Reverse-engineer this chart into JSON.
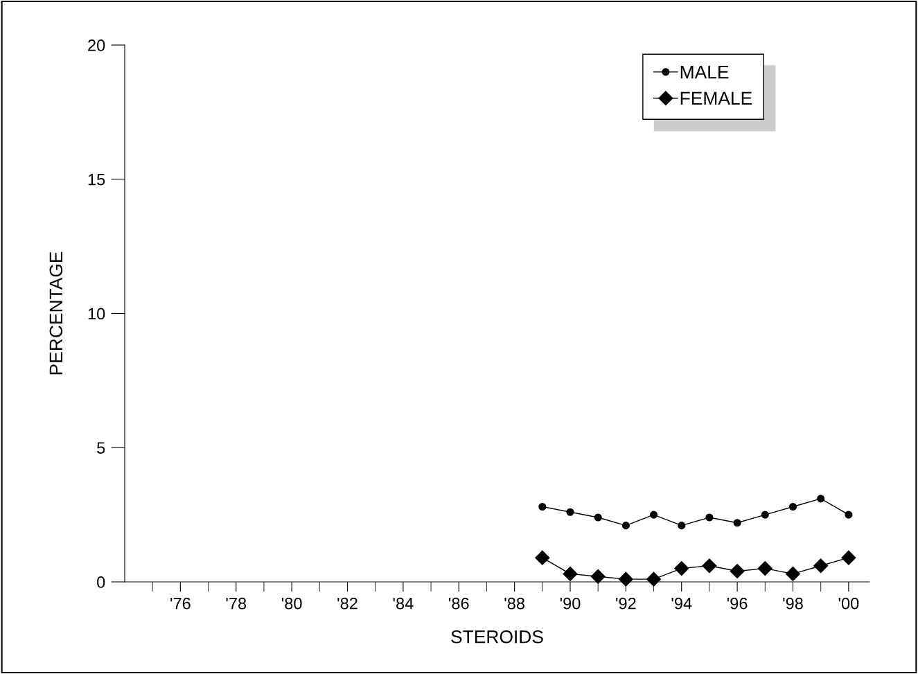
{
  "chart_data": {
    "type": "line",
    "xlabel": "STEROIDS",
    "ylabel": "PERCENTAGE",
    "x": [
      1989,
      1990,
      1991,
      1992,
      1993,
      1994,
      1995,
      1996,
      1997,
      1998,
      1999,
      2000
    ],
    "series": [
      {
        "name": "MALE",
        "color": "#000000",
        "marker": "circle",
        "values": [
          2.8,
          2.6,
          2.4,
          2.1,
          2.5,
          2.1,
          2.4,
          2.2,
          2.5,
          2.8,
          3.1,
          2.5
        ]
      },
      {
        "name": "FEMALE",
        "color": "#000000",
        "marker": "diamond",
        "values": [
          0.9,
          0.3,
          0.2,
          0.1,
          0.1,
          0.5,
          0.6,
          0.4,
          0.5,
          0.3,
          0.6,
          0.9
        ]
      }
    ],
    "xlim": [
      1974,
      2000.75
    ],
    "xticks": [
      {
        "value": 1975,
        "label": null
      },
      {
        "value": 1976,
        "label": "'76"
      },
      {
        "value": 1977,
        "label": null
      },
      {
        "value": 1978,
        "label": "'78"
      },
      {
        "value": 1979,
        "label": null
      },
      {
        "value": 1980,
        "label": "'80"
      },
      {
        "value": 1981,
        "label": null
      },
      {
        "value": 1982,
        "label": "'82"
      },
      {
        "value": 1983,
        "label": null
      },
      {
        "value": 1984,
        "label": "'84"
      },
      {
        "value": 1985,
        "label": null
      },
      {
        "value": 1986,
        "label": "'86"
      },
      {
        "value": 1987,
        "label": null
      },
      {
        "value": 1988,
        "label": "'88"
      },
      {
        "value": 1989,
        "label": null
      },
      {
        "value": 1990,
        "label": "'90"
      },
      {
        "value": 1991,
        "label": null
      },
      {
        "value": 1992,
        "label": "'92"
      },
      {
        "value": 1993,
        "label": null
      },
      {
        "value": 1994,
        "label": "'94"
      },
      {
        "value": 1995,
        "label": null
      },
      {
        "value": 1996,
        "label": "'96"
      },
      {
        "value": 1997,
        "label": null
      },
      {
        "value": 1998,
        "label": "'98"
      },
      {
        "value": 1999,
        "label": null
      },
      {
        "value": 2000,
        "label": "'00"
      }
    ],
    "ylim": [
      0,
      20
    ],
    "yticks": [
      0,
      5,
      10,
      15,
      20
    ],
    "grid": false,
    "legend": "top right",
    "line_style": "solid"
  }
}
